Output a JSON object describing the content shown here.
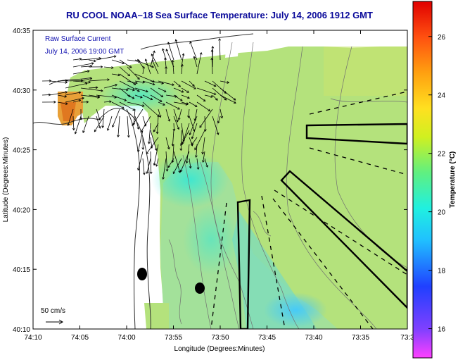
{
  "title": "RU COOL  NOAA–18  Sea Surface Temperature:  July 14, 2006 1912 GMT",
  "inset": {
    "line1": "Raw Surface Current",
    "line2": "July 14, 2006 19:00 GMT"
  },
  "scale_label": "50 cm/s",
  "axes": {
    "xlabel": "Longitude (Degrees:Minutes)",
    "ylabel": "Latitude (Degrees:Minutes)",
    "xticks": [
      "74:10",
      "74:05",
      "74:00",
      "73:55",
      "73:50",
      "73:45",
      "73:40",
      "73:35",
      "73:3"
    ],
    "yticks": [
      "40:35",
      "40:30",
      "40:25",
      "40:20",
      "40:15",
      "40:10"
    ]
  },
  "colorbar": {
    "title": "Temperature (°C)",
    "ticks": [
      "26",
      "24",
      "22",
      "20",
      "18",
      "16"
    ],
    "min": 15.0,
    "max": 27.2,
    "tick_values": [
      26,
      24,
      22,
      20,
      18,
      16
    ]
  },
  "colors": {
    "title": "#0a0a9a",
    "inset_text": "#1010b0",
    "land": "#ffffff",
    "water_main": "#b8e27a",
    "water_mid": "#9fe0a0",
    "cool_channel": "#5fd9d0",
    "warm_patch": "#f0a020"
  }
}
